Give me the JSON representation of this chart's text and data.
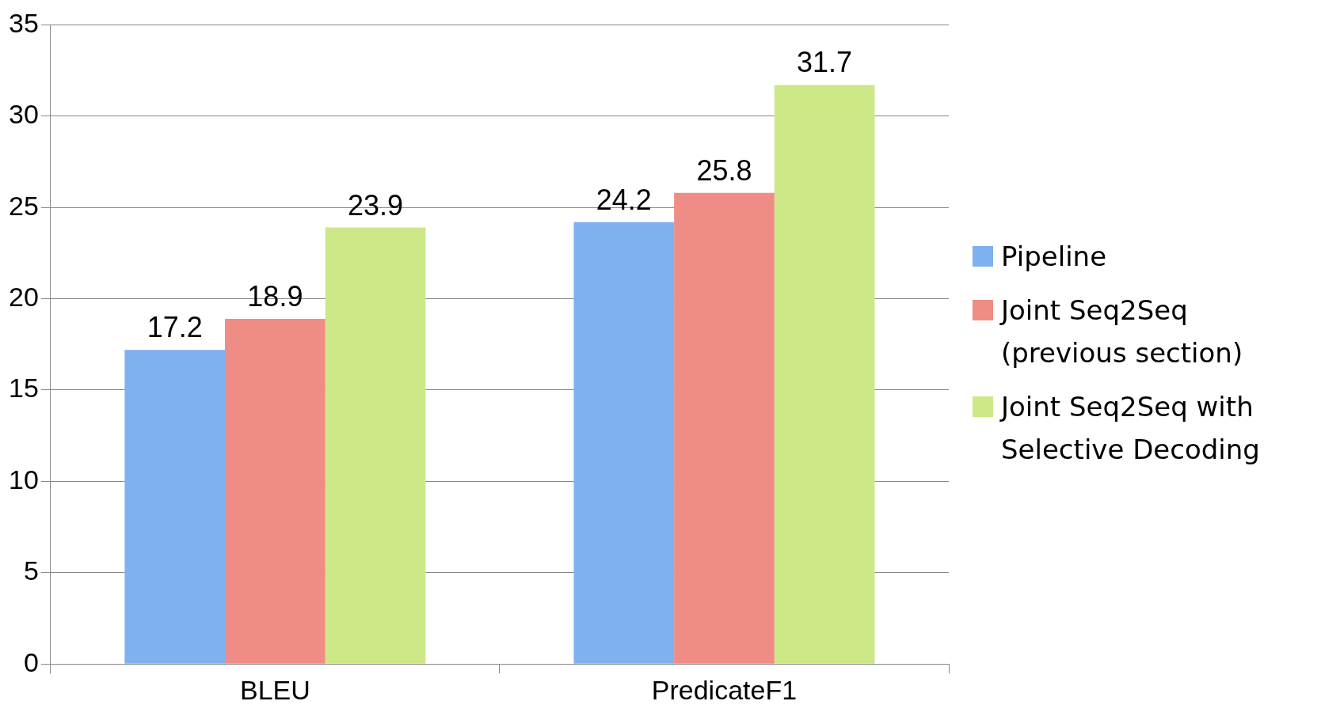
{
  "chart_data": {
    "type": "bar",
    "categories": [
      "BLEU",
      "PredicateF1"
    ],
    "series": [
      {
        "name": "Pipeline",
        "color": "#7fb0f0",
        "values": [
          17.2,
          24.2
        ]
      },
      {
        "name": "Joint Seq2Seq (previous section)",
        "color": "#f08c86",
        "values": [
          18.9,
          25.8
        ]
      },
      {
        "name": "Joint Seq2Seq with Selective Decoding",
        "color": "#cde886",
        "values": [
          23.9,
          31.7
        ]
      }
    ],
    "ylim": [
      0,
      35
    ],
    "yticks": [
      0,
      5,
      10,
      15,
      20,
      25,
      30,
      35
    ],
    "grid": "y",
    "legend": "right",
    "data_labels": true
  }
}
